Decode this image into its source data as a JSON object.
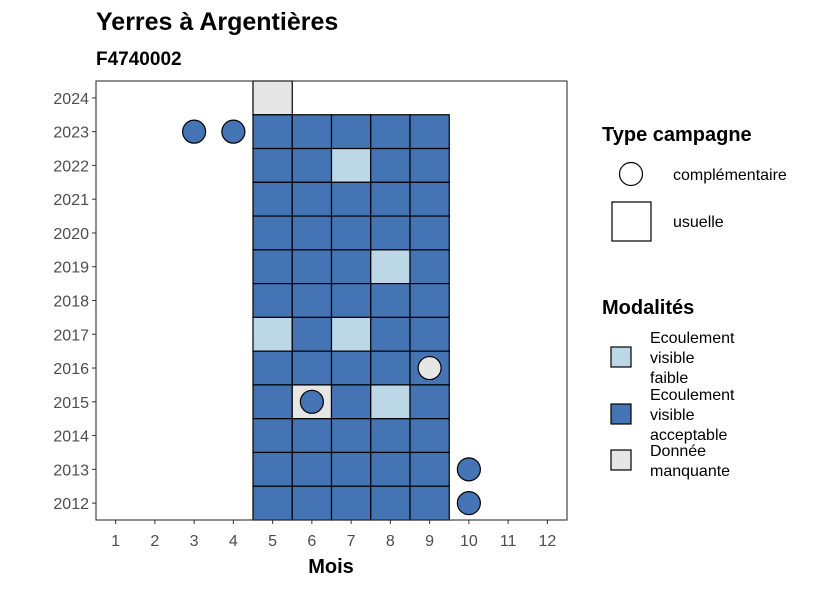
{
  "chart_data": {
    "type": "heatmap",
    "title": "Yerres à Argentières",
    "subtitle": "F4740002",
    "xlabel": "Mois",
    "ylabel": "",
    "x_ticks": [
      "1",
      "2",
      "3",
      "4",
      "5",
      "6",
      "7",
      "8",
      "9",
      "10",
      "11",
      "12"
    ],
    "y_ticks": [
      "2012",
      "2013",
      "2014",
      "2015",
      "2016",
      "2017",
      "2018",
      "2019",
      "2020",
      "2021",
      "2022",
      "2023",
      "2024"
    ],
    "xlim": [
      0.5,
      12.5
    ],
    "ylim": [
      2011.5,
      2024.5
    ],
    "colors": {
      "faible": "#bcd7e6",
      "acceptable": "#4574b5",
      "manquante": "#e6e6e6"
    },
    "legend_type": {
      "title": "Type campagne",
      "items": [
        {
          "label": "complémentaire",
          "shape": "circle"
        },
        {
          "label": "usuelle",
          "shape": "square"
        }
      ]
    },
    "legend_modalites": {
      "title": "Modalités",
      "items": [
        {
          "key": "faible",
          "lines": [
            "Ecoulement",
            "visible",
            "faible"
          ]
        },
        {
          "key": "acceptable",
          "lines": [
            "Ecoulement",
            "visible",
            "acceptable"
          ]
        },
        {
          "key": "manquante",
          "lines": [
            "Donnée",
            "manquante"
          ]
        }
      ]
    },
    "usuelle": [
      {
        "year": 2024,
        "month": 5,
        "modalite": "manquante"
      },
      {
        "year": 2023,
        "month": 5,
        "modalite": "acceptable"
      },
      {
        "year": 2023,
        "month": 6,
        "modalite": "acceptable"
      },
      {
        "year": 2023,
        "month": 7,
        "modalite": "acceptable"
      },
      {
        "year": 2023,
        "month": 8,
        "modalite": "acceptable"
      },
      {
        "year": 2023,
        "month": 9,
        "modalite": "acceptable"
      },
      {
        "year": 2022,
        "month": 5,
        "modalite": "acceptable"
      },
      {
        "year": 2022,
        "month": 6,
        "modalite": "acceptable"
      },
      {
        "year": 2022,
        "month": 7,
        "modalite": "faible"
      },
      {
        "year": 2022,
        "month": 8,
        "modalite": "acceptable"
      },
      {
        "year": 2022,
        "month": 9,
        "modalite": "acceptable"
      },
      {
        "year": 2021,
        "month": 5,
        "modalite": "acceptable"
      },
      {
        "year": 2021,
        "month": 6,
        "modalite": "acceptable"
      },
      {
        "year": 2021,
        "month": 7,
        "modalite": "acceptable"
      },
      {
        "year": 2021,
        "month": 8,
        "modalite": "acceptable"
      },
      {
        "year": 2021,
        "month": 9,
        "modalite": "acceptable"
      },
      {
        "year": 2020,
        "month": 5,
        "modalite": "acceptable"
      },
      {
        "year": 2020,
        "month": 6,
        "modalite": "acceptable"
      },
      {
        "year": 2020,
        "month": 7,
        "modalite": "acceptable"
      },
      {
        "year": 2020,
        "month": 8,
        "modalite": "acceptable"
      },
      {
        "year": 2020,
        "month": 9,
        "modalite": "acceptable"
      },
      {
        "year": 2019,
        "month": 5,
        "modalite": "acceptable"
      },
      {
        "year": 2019,
        "month": 6,
        "modalite": "acceptable"
      },
      {
        "year": 2019,
        "month": 7,
        "modalite": "acceptable"
      },
      {
        "year": 2019,
        "month": 8,
        "modalite": "faible"
      },
      {
        "year": 2019,
        "month": 9,
        "modalite": "acceptable"
      },
      {
        "year": 2018,
        "month": 5,
        "modalite": "acceptable"
      },
      {
        "year": 2018,
        "month": 6,
        "modalite": "acceptable"
      },
      {
        "year": 2018,
        "month": 7,
        "modalite": "acceptable"
      },
      {
        "year": 2018,
        "month": 8,
        "modalite": "acceptable"
      },
      {
        "year": 2018,
        "month": 9,
        "modalite": "acceptable"
      },
      {
        "year": 2017,
        "month": 5,
        "modalite": "faible"
      },
      {
        "year": 2017,
        "month": 6,
        "modalite": "acceptable"
      },
      {
        "year": 2017,
        "month": 7,
        "modalite": "faible"
      },
      {
        "year": 2017,
        "month": 8,
        "modalite": "acceptable"
      },
      {
        "year": 2017,
        "month": 9,
        "modalite": "acceptable"
      },
      {
        "year": 2016,
        "month": 5,
        "modalite": "acceptable"
      },
      {
        "year": 2016,
        "month": 6,
        "modalite": "acceptable"
      },
      {
        "year": 2016,
        "month": 7,
        "modalite": "acceptable"
      },
      {
        "year": 2016,
        "month": 8,
        "modalite": "acceptable"
      },
      {
        "year": 2016,
        "month": 9,
        "modalite": "acceptable"
      },
      {
        "year": 2015,
        "month": 5,
        "modalite": "acceptable"
      },
      {
        "year": 2015,
        "month": 6,
        "modalite": "manquante"
      },
      {
        "year": 2015,
        "month": 7,
        "modalite": "acceptable"
      },
      {
        "year": 2015,
        "month": 8,
        "modalite": "faible"
      },
      {
        "year": 2015,
        "month": 9,
        "modalite": "acceptable"
      },
      {
        "year": 2014,
        "month": 5,
        "modalite": "acceptable"
      },
      {
        "year": 2014,
        "month": 6,
        "modalite": "acceptable"
      },
      {
        "year": 2014,
        "month": 7,
        "modalite": "acceptable"
      },
      {
        "year": 2014,
        "month": 8,
        "modalite": "acceptable"
      },
      {
        "year": 2014,
        "month": 9,
        "modalite": "acceptable"
      },
      {
        "year": 2013,
        "month": 5,
        "modalite": "acceptable"
      },
      {
        "year": 2013,
        "month": 6,
        "modalite": "acceptable"
      },
      {
        "year": 2013,
        "month": 7,
        "modalite": "acceptable"
      },
      {
        "year": 2013,
        "month": 8,
        "modalite": "acceptable"
      },
      {
        "year": 2013,
        "month": 9,
        "modalite": "acceptable"
      },
      {
        "year": 2012,
        "month": 5,
        "modalite": "acceptable"
      },
      {
        "year": 2012,
        "month": 6,
        "modalite": "acceptable"
      },
      {
        "year": 2012,
        "month": 7,
        "modalite": "acceptable"
      },
      {
        "year": 2012,
        "month": 8,
        "modalite": "acceptable"
      },
      {
        "year": 2012,
        "month": 9,
        "modalite": "acceptable"
      }
    ],
    "complementaire": [
      {
        "year": 2023,
        "month": 3,
        "modalite": "acceptable"
      },
      {
        "year": 2023,
        "month": 4,
        "modalite": "acceptable"
      },
      {
        "year": 2016,
        "month": 9,
        "modalite": "manquante"
      },
      {
        "year": 2015,
        "month": 6,
        "modalite": "acceptable"
      },
      {
        "year": 2013,
        "month": 10,
        "modalite": "acceptable"
      },
      {
        "year": 2012,
        "month": 10,
        "modalite": "acceptable"
      }
    ]
  }
}
